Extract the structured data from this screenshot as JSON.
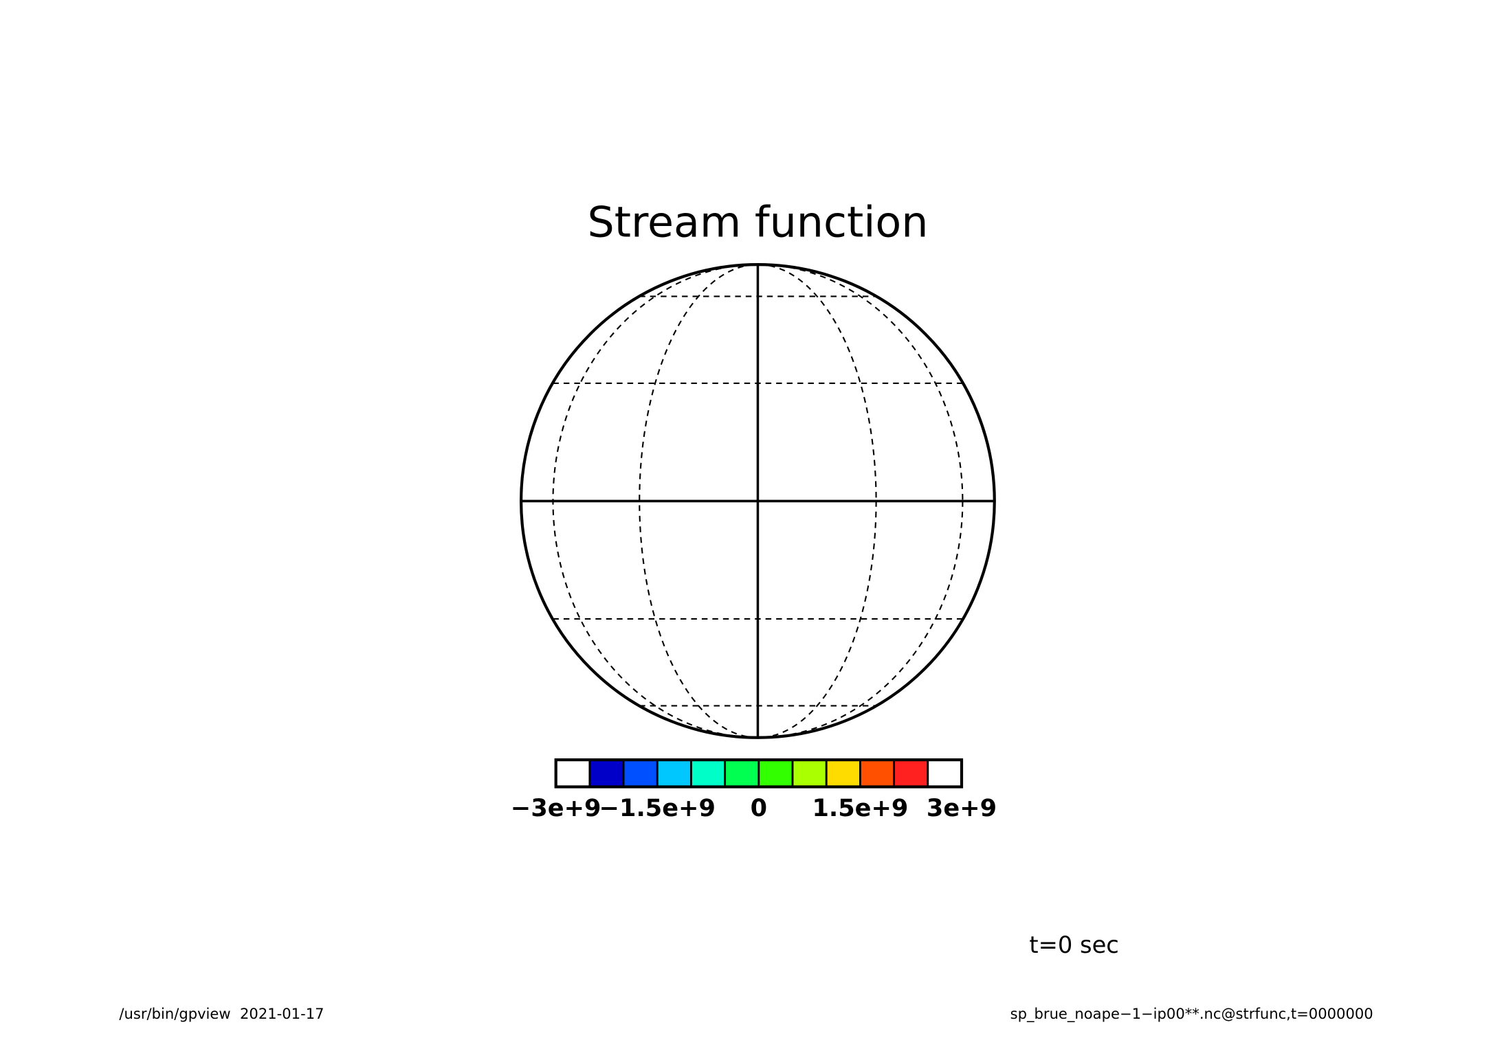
{
  "chart_data": {
    "type": "map",
    "title": "Stream function",
    "colorbar": {
      "bins": [
        -3000000000,
        -2500000000,
        -2000000000,
        -1500000000,
        -1000000000,
        -500000000,
        0,
        500000000,
        1000000000,
        1500000000,
        2000000000,
        2500000000,
        3000000000
      ],
      "colors": [
        "#ffffff",
        "#0000c8",
        "#0050ff",
        "#00c8ff",
        "#00ffc8",
        "#00ff50",
        "#32ff00",
        "#aaff00",
        "#ffdc00",
        "#ff5000",
        "#ff2020",
        "#ffffff"
      ],
      "ticks": [
        {
          "value": -3000000000,
          "label": "−3e+9"
        },
        {
          "value": -1500000000,
          "label": "−1.5e+9"
        },
        0,
        {
          "value": 1500000000,
          "label": "1.5e+9"
        },
        {
          "value": 3000000000,
          "label": "3e+9"
        }
      ]
    },
    "annotation": "t=0 sec",
    "footer_left": "/usr/bin/gpview  2021-01-17",
    "footer_right": "sp_brue_noape−1−ip00**.nc@strfunc,t=0000000"
  }
}
